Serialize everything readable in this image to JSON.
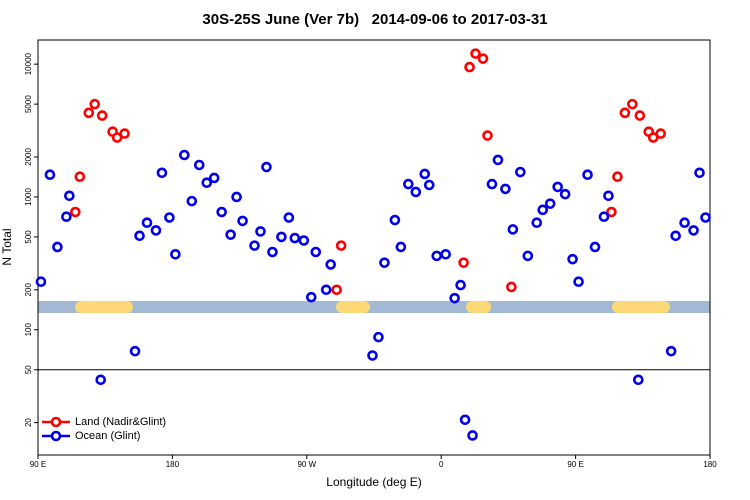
{
  "chart_data": {
    "type": "scatter",
    "title": "30S-25S June (Ver 7b)   2014-09-06 to 2017-03-31",
    "x_label": "Longitude (deg E)",
    "y_label": "N Total",
    "log_y": true,
    "xlim": [
      90,
      540
    ],
    "ylim": [
      11.4,
      15200
    ],
    "xticks": [
      {
        "value": 90,
        "label": "90 E"
      },
      {
        "value": 180,
        "label": "180"
      },
      {
        "value": 270,
        "label": "90 W"
      },
      {
        "value": 360,
        "label": "0"
      },
      {
        "value": 450,
        "label": "90 E"
      },
      {
        "value": 540,
        "label": "180"
      }
    ],
    "yticks": [
      20,
      50,
      100,
      200,
      500,
      1000,
      2000,
      5000,
      10000
    ],
    "reference_line": 50,
    "legend": "bottom-left",
    "series": [
      {
        "name": "Land (Nadir&Glint)",
        "color": "#ff0000",
        "x": [
          115,
          118,
          124,
          128,
          133,
          140,
          143,
          148,
          290,
          293,
          375,
          379,
          383,
          388,
          391,
          407,
          474,
          478,
          483,
          488,
          493,
          499,
          502,
          507
        ],
        "values": [
          770,
          1420,
          4300,
          5000,
          4100,
          3100,
          2800,
          3000,
          200,
          430,
          320,
          9500,
          12000,
          11000,
          2900,
          210,
          770,
          1420,
          4300,
          5000,
          4100,
          3100,
          2800,
          3000
        ]
      },
      {
        "name": "Ocean (Glint)",
        "color": "#0000ee",
        "x": [
          92,
          98,
          103,
          109,
          111,
          132,
          155,
          158,
          163,
          169,
          173,
          178,
          182,
          188,
          193,
          198,
          203,
          208,
          213,
          219,
          223,
          227,
          235,
          239,
          243,
          247,
          253,
          258,
          262,
          268,
          273,
          276,
          283,
          286,
          314,
          318,
          322,
          329,
          333,
          338,
          343,
          349,
          352,
          357,
          363,
          369,
          373,
          376,
          381,
          394,
          398,
          403,
          408,
          413,
          418,
          424,
          428,
          433,
          438,
          443,
          448,
          452,
          458,
          463,
          469,
          472,
          492,
          514,
          517,
          523,
          529,
          533,
          537
        ],
        "values": [
          230,
          1470,
          420,
          710,
          1020,
          42,
          69,
          510,
          640,
          560,
          1520,
          700,
          370,
          2070,
          930,
          1740,
          1280,
          1390,
          770,
          520,
          1000,
          660,
          430,
          550,
          1680,
          385,
          500,
          700,
          490,
          470,
          176,
          385,
          200,
          310,
          64,
          88,
          320,
          670,
          420,
          1250,
          1090,
          1490,
          1230,
          360,
          370,
          173,
          217,
          21,
          16,
          1250,
          1900,
          1150,
          570,
          1540,
          360,
          640,
          800,
          890,
          1190,
          1050,
          340,
          230,
          1470,
          420,
          710,
          1020,
          42,
          69,
          510,
          640,
          560,
          1520,
          700
        ]
      }
    ]
  }
}
